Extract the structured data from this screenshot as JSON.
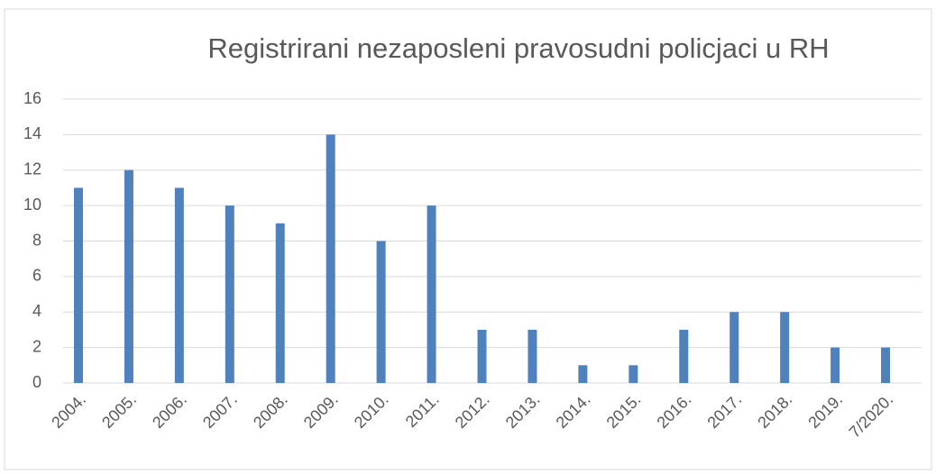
{
  "chart_data": {
    "type": "bar",
    "title": "Registrirani nezaposleni pravosudni policjaci u RH",
    "categories": [
      "2004.",
      "2005.",
      "2006.",
      "2007.",
      "2008.",
      "2009.",
      "2010.",
      "2011.",
      "2012.",
      "2013.",
      "2014.",
      "2015.",
      "2016.",
      "2017.",
      "2018.",
      "2019.",
      "7/2020."
    ],
    "values": [
      11,
      12,
      11,
      10,
      9,
      14,
      8,
      10,
      3,
      3,
      1,
      1,
      3,
      4,
      4,
      2,
      2
    ],
    "color": "#4f81bd",
    "ylim": [
      0,
      16
    ],
    "yticks": [
      0,
      2,
      4,
      6,
      8,
      10,
      12,
      14,
      16
    ],
    "grid": true
  }
}
